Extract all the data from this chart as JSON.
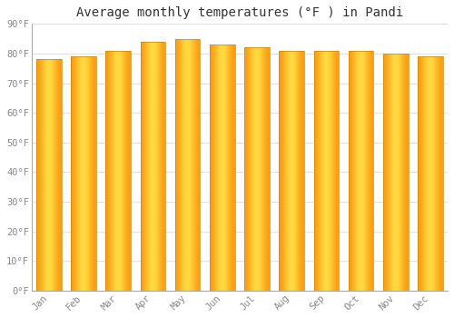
{
  "title": "Average monthly temperatures (°F ) in Pandi",
  "months": [
    "Jan",
    "Feb",
    "Mar",
    "Apr",
    "May",
    "Jun",
    "Jul",
    "Aug",
    "Sep",
    "Oct",
    "Nov",
    "Dec"
  ],
  "values": [
    78,
    79,
    81,
    84,
    85,
    83,
    82,
    81,
    81,
    81,
    80,
    79
  ],
  "bar_edge_color": "#cc8800",
  "bar_center_color": "#ffcc44",
  "bar_outer_color": "#ff9900",
  "background_color": "#ffffff",
  "plot_bg_color": "#ffffff",
  "grid_color": "#e0e0e0",
  "ylim": [
    0,
    90
  ],
  "yticks": [
    0,
    10,
    20,
    30,
    40,
    50,
    60,
    70,
    80,
    90
  ],
  "ytick_labels": [
    "0°F",
    "10°F",
    "20°F",
    "30°F",
    "40°F",
    "50°F",
    "60°F",
    "70°F",
    "80°F",
    "90°F"
  ],
  "title_fontsize": 10,
  "tick_fontsize": 7.5,
  "title_color": "#333333",
  "tick_color": "#888888",
  "font_family": "monospace",
  "bar_width": 0.72,
  "gradient_steps": 80
}
